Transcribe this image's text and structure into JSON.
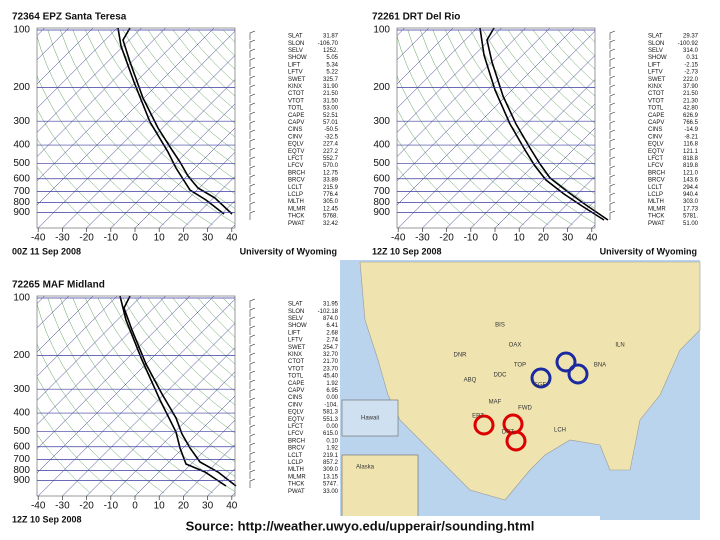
{
  "panels": [
    {
      "title": "72364 EPZ Santa Teresa",
      "time": "00Z 11 Sep 2008",
      "credit": "University of Wyoming",
      "pressure_ticks": [
        100,
        200,
        300,
        400,
        500,
        600,
        700,
        800,
        900
      ],
      "temperature_ticks": [
        -40,
        -30,
        -20,
        -10,
        0,
        10,
        20,
        30,
        40
      ],
      "indices": [
        [
          "SLAT",
          "31.87"
        ],
        [
          "SLON",
          "-106.70"
        ],
        [
          "SELV",
          "1252."
        ],
        [
          "SHOW",
          "5.05"
        ],
        [
          "LIFT",
          "5.34"
        ],
        [
          "LFTV",
          "5.22"
        ],
        [
          "SWET",
          "325.7"
        ],
        [
          "KINX",
          "31.90"
        ],
        [
          "CTOT",
          "21.50"
        ],
        [
          "VTOT",
          "31.50"
        ],
        [
          "TOTL",
          "53.00"
        ],
        [
          "CAPE",
          "52.51"
        ],
        [
          "CAPV",
          "57.01"
        ],
        [
          "CINS",
          "-50.5"
        ],
        [
          "CINV",
          "-32.5"
        ],
        [
          "EQLV",
          "227.4"
        ],
        [
          "EQTV",
          "227.2"
        ],
        [
          "LFCT",
          "552.7"
        ],
        [
          "LFCV",
          "570.0"
        ],
        [
          "BRCH",
          "12.75"
        ],
        [
          "BRCV",
          "33.89"
        ],
        [
          "LCLT",
          "215.9"
        ],
        [
          "LCLP",
          "776.4"
        ],
        [
          "MLTH",
          "305.0"
        ],
        [
          "MLMR",
          "12.45"
        ],
        [
          "THCK",
          "5768."
        ],
        [
          "PWAT",
          "32.42"
        ]
      ]
    },
    {
      "title": "72261 DRT Del Rio",
      "time": "12Z 10 Sep 2008",
      "credit": "University of Wyoming",
      "pressure_ticks": [
        100,
        200,
        300,
        400,
        500,
        600,
        700,
        800,
        900
      ],
      "temperature_ticks": [
        -40,
        -30,
        -20,
        -10,
        0,
        10,
        20,
        30,
        40
      ],
      "indices": [
        [
          "SLAT",
          "29.37"
        ],
        [
          "SLON",
          "-100.92"
        ],
        [
          "SELV",
          "314.0"
        ],
        [
          "SHOW",
          "0.31"
        ],
        [
          "LIFT",
          "-2.15"
        ],
        [
          "LFTV",
          "-2.73"
        ],
        [
          "SWET",
          "222.0"
        ],
        [
          "KINX",
          "37.90"
        ],
        [
          "CTOT",
          "21.50"
        ],
        [
          "VTOT",
          "21.30"
        ],
        [
          "TOTL",
          "42.80"
        ],
        [
          "CAPE",
          "626.9"
        ],
        [
          "CAPV",
          "766.5"
        ],
        [
          "CINS",
          "-14.9"
        ],
        [
          "CINV",
          "-8.21"
        ],
        [
          "EQLV",
          "116.8"
        ],
        [
          "EQTV",
          "121.1"
        ],
        [
          "LFCT",
          "818.8"
        ],
        [
          "LFCV",
          "819.8"
        ],
        [
          "BRCH",
          "121.0"
        ],
        [
          "BRCV",
          "143.6"
        ],
        [
          "LCLT",
          "294.4"
        ],
        [
          "LCLP",
          "940.4"
        ],
        [
          "MLTH",
          "303.0"
        ],
        [
          "MLMR",
          "17.73"
        ],
        [
          "THCK",
          "5781."
        ],
        [
          "PWAT",
          "51.00"
        ]
      ]
    },
    {
      "title": "72265 MAF Midland",
      "time": "12Z 10 Sep 2008",
      "credit": "University of Wyoming",
      "pressure_ticks": [
        100,
        200,
        300,
        400,
        500,
        600,
        700,
        800,
        900
      ],
      "temperature_ticks": [
        -40,
        -30,
        -20,
        -10,
        0,
        10,
        20,
        30,
        40
      ],
      "indices": [
        [
          "SLAT",
          "31.95"
        ],
        [
          "SLON",
          "-102.18"
        ],
        [
          "SELV",
          "874.0"
        ],
        [
          "SHOW",
          "6.41"
        ],
        [
          "LIFT",
          "2.68"
        ],
        [
          "LFTV",
          "2.74"
        ],
        [
          "SWET",
          "254.7"
        ],
        [
          "KINX",
          "32.70"
        ],
        [
          "CTOT",
          "21.70"
        ],
        [
          "VTOT",
          "23.70"
        ],
        [
          "TOTL",
          "45.40"
        ],
        [
          "CAPE",
          "1.92"
        ],
        [
          "CAPV",
          "6.95"
        ],
        [
          "CINS",
          "0.00"
        ],
        [
          "CINV",
          "-104."
        ],
        [
          "EQLV",
          "581.3"
        ],
        [
          "EQTV",
          "551.3"
        ],
        [
          "LFCT",
          "0.00"
        ],
        [
          "LFCV",
          "615.0"
        ],
        [
          "BRCH",
          "0.10"
        ],
        [
          "BRCV",
          "1.92"
        ],
        [
          "LCLT",
          "219.1"
        ],
        [
          "LCLP",
          "857.2"
        ],
        [
          "MLTH",
          "309.0"
        ],
        [
          "MLMR",
          "13.15"
        ],
        [
          "THCK",
          "5747."
        ],
        [
          "PWAT",
          "33.00"
        ]
      ]
    }
  ],
  "map": {
    "labels": [
      "Hawaii",
      "Alaska",
      "EPZ",
      "MAF",
      "DRT",
      "FWD",
      "DDC",
      "TOP",
      "OAX",
      "LCH",
      "BNA",
      "ILN",
      "SGF",
      "ABQ",
      "DNR",
      "BIS"
    ]
  },
  "source": "Source: http://weather.uwyo.edu/upperair/sounding.html"
}
